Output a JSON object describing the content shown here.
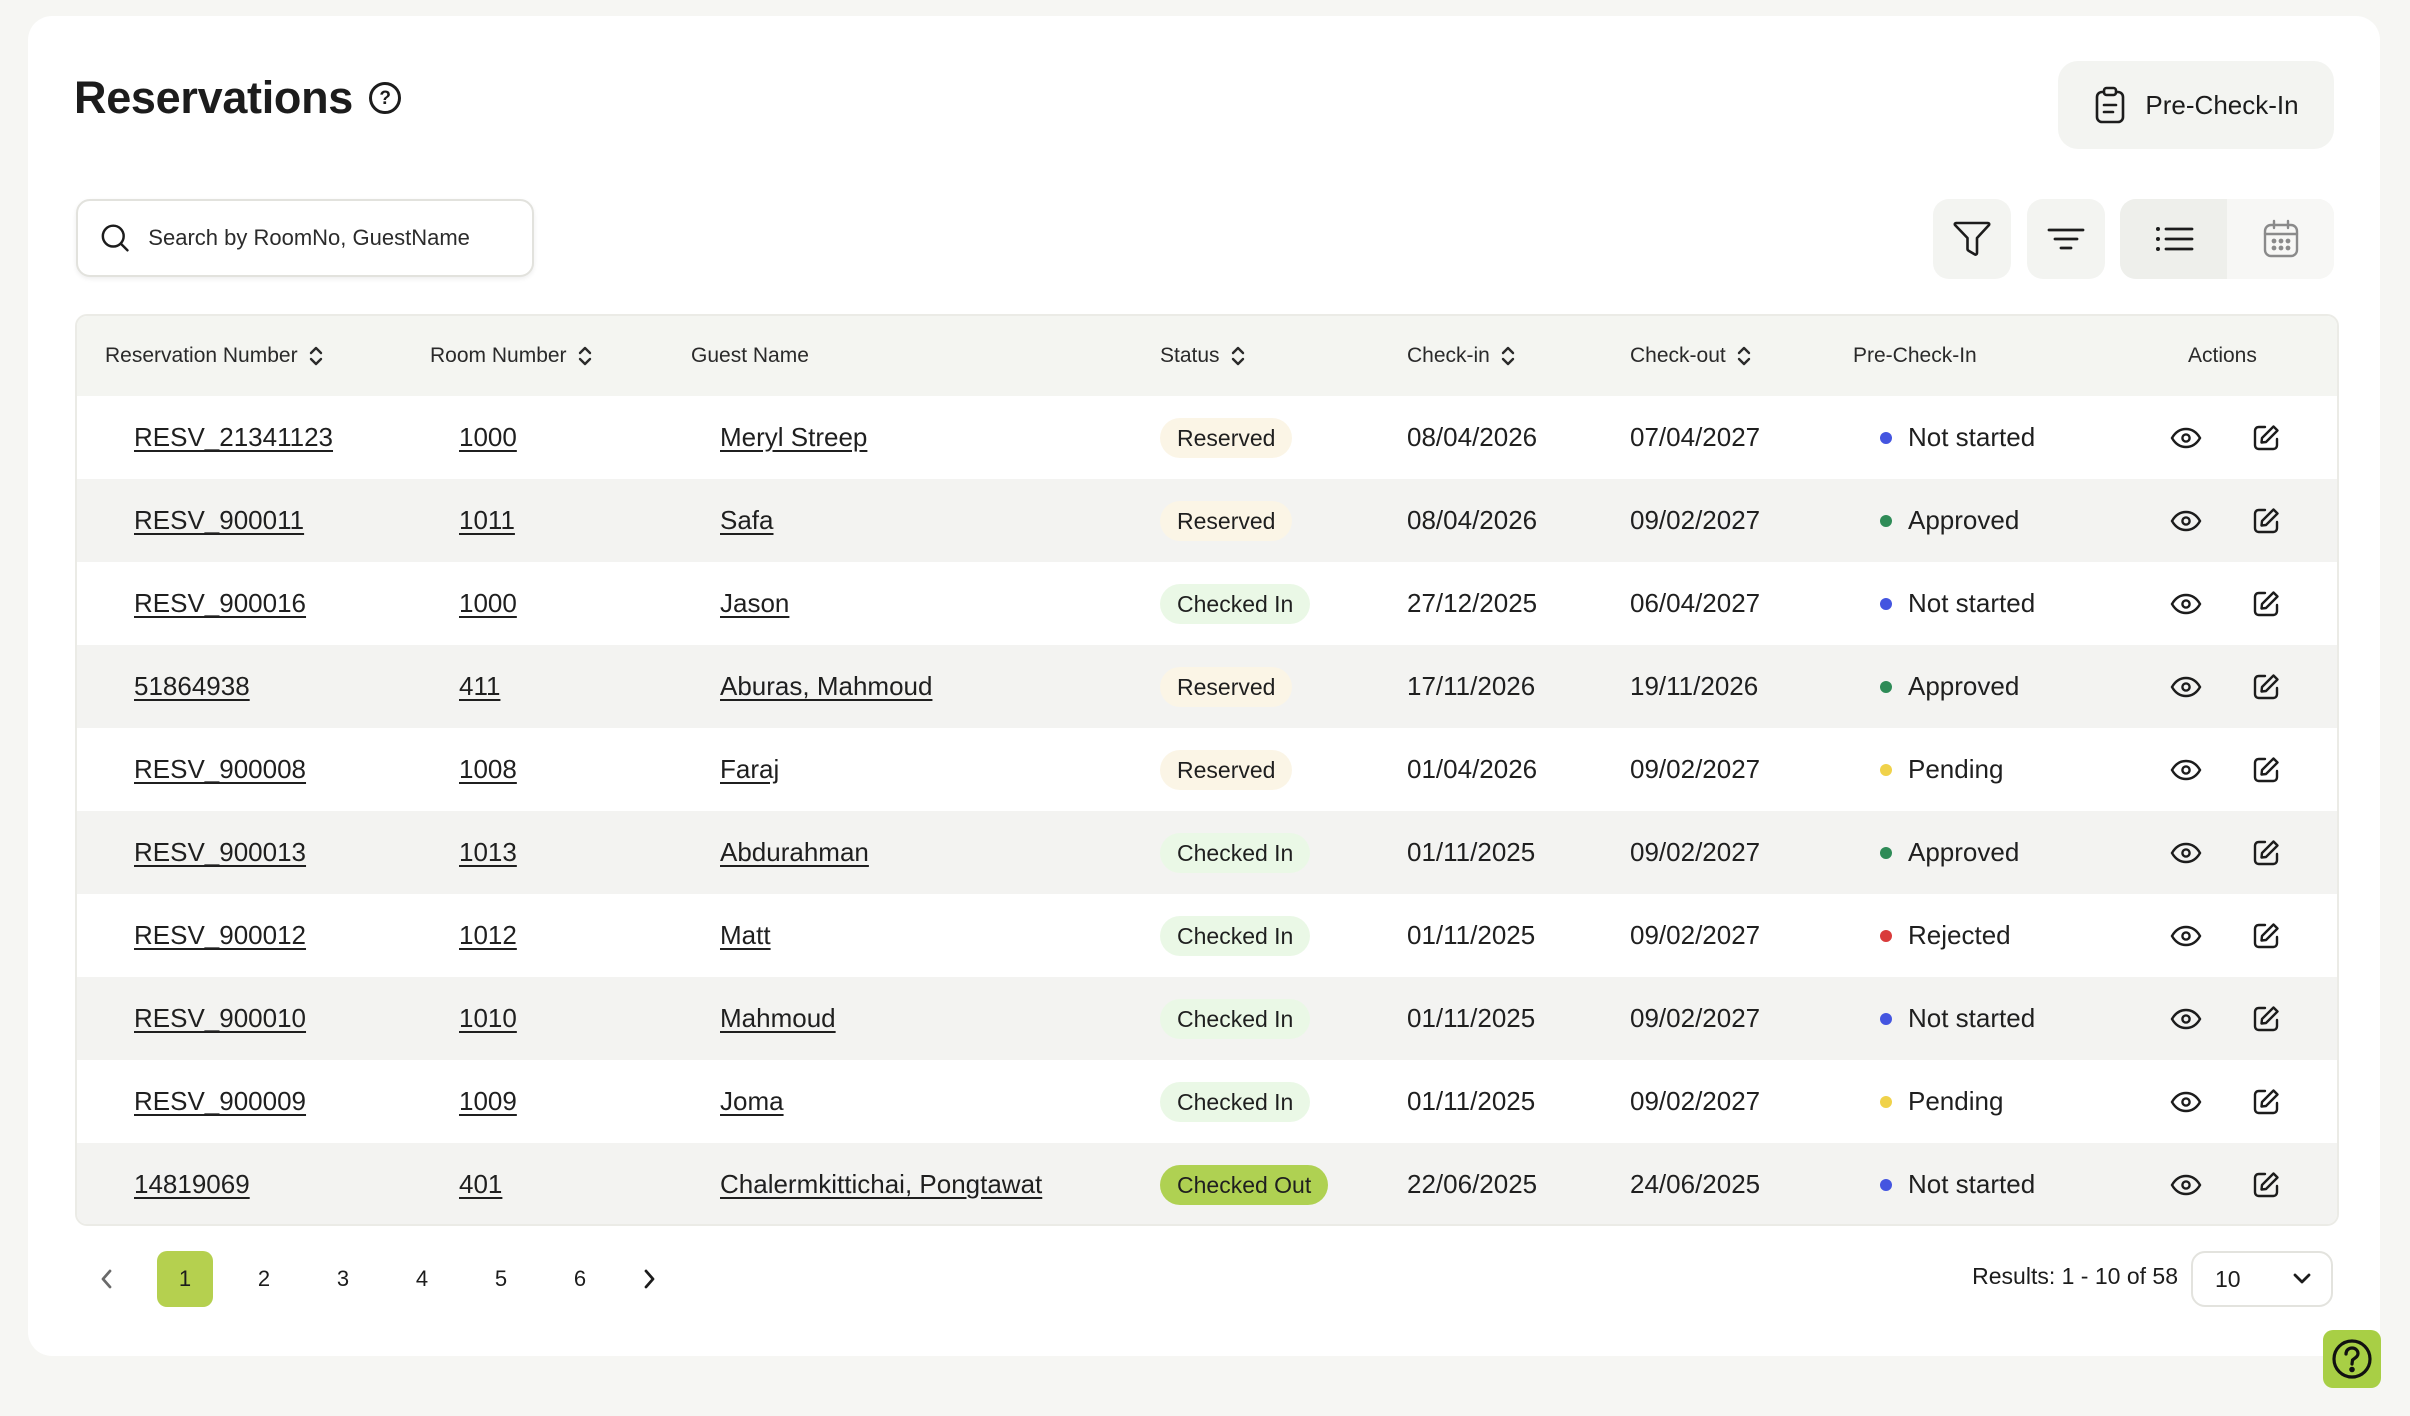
{
  "header": {
    "title": "Reservations",
    "help_glyph": "?",
    "precheck_button": "Pre-Check-In",
    "precheck_icon": "clipboard-icon"
  },
  "search": {
    "placeholder": "Search by RoomNo, GuestName",
    "value": ""
  },
  "toolbar": {
    "icons": [
      "funnel-filter-icon",
      "sort-lines-icon",
      "list-view-icon",
      "calendar-view-icon"
    ],
    "active_view": "list"
  },
  "table": {
    "columns": {
      "reservation_number": "Reservation Number",
      "room_number": "Room Number",
      "guest_name": "Guest Name",
      "status": "Status",
      "check_in": "Check-in",
      "check_out": "Check-out",
      "pre_check_in": "Pre-Check-In",
      "actions": "Actions"
    },
    "rows": [
      {
        "res": "RESV_21341123",
        "room": "1000",
        "guest": "Meryl Streep",
        "status": "Reserved",
        "status_kind": "reserved",
        "in": "08/04/2026",
        "out": "07/04/2027",
        "pre": "Not started",
        "pre_color": "#4455e0"
      },
      {
        "res": "RESV_900011",
        "room": "1011",
        "guest": "Safa",
        "status": "Reserved",
        "status_kind": "reserved",
        "in": "08/04/2026",
        "out": "09/02/2027",
        "pre": "Approved",
        "pre_color": "#2e8b57"
      },
      {
        "res": "RESV_900016",
        "room": "1000",
        "guest": "Jason",
        "status": "Checked In",
        "status_kind": "checkedin",
        "in": "27/12/2025",
        "out": "06/04/2027",
        "pre": "Not started",
        "pre_color": "#4455e0"
      },
      {
        "res": "51864938",
        "room": "411",
        "guest": "Aburas, Mahmoud",
        "status": "Reserved",
        "status_kind": "reserved",
        "in": "17/11/2026",
        "out": "19/11/2026",
        "pre": "Approved",
        "pre_color": "#2e8b57"
      },
      {
        "res": "RESV_900008",
        "room": "1008",
        "guest": "Faraj",
        "status": "Reserved",
        "status_kind": "reserved",
        "in": "01/04/2026",
        "out": "09/02/2027",
        "pre": "Pending",
        "pre_color": "#f0d24a"
      },
      {
        "res": "RESV_900013",
        "room": "1013",
        "guest": "Abdurahman",
        "status": "Checked In",
        "status_kind": "checkedin",
        "in": "01/11/2025",
        "out": "09/02/2027",
        "pre": "Approved",
        "pre_color": "#2e8b57"
      },
      {
        "res": "RESV_900012",
        "room": "1012",
        "guest": "Matt",
        "status": "Checked In",
        "status_kind": "checkedin",
        "in": "01/11/2025",
        "out": "09/02/2027",
        "pre": "Rejected",
        "pre_color": "#d93b3b"
      },
      {
        "res": "RESV_900010",
        "room": "1010",
        "guest": "Mahmoud",
        "status": "Checked In",
        "status_kind": "checkedin",
        "in": "01/11/2025",
        "out": "09/02/2027",
        "pre": "Not started",
        "pre_color": "#4455e0"
      },
      {
        "res": "RESV_900009",
        "room": "1009",
        "guest": "Joma",
        "status": "Checked In",
        "status_kind": "checkedin",
        "in": "01/11/2025",
        "out": "09/02/2027",
        "pre": "Pending",
        "pre_color": "#f0d24a"
      },
      {
        "res": "14819069",
        "room": "401",
        "guest": "Chalermkittichai, Pongtawat",
        "status": "Checked Out",
        "status_kind": "checkedout",
        "in": "22/06/2025",
        "out": "24/06/2025",
        "pre": "Not started",
        "pre_color": "#4455e0"
      }
    ]
  },
  "pagination": {
    "pages": [
      "1",
      "2",
      "3",
      "4",
      "5",
      "6"
    ],
    "current": "1",
    "results_text": "Results: 1 - 10 of 58",
    "per_page": "10"
  },
  "colors": {
    "accent": "#b5d04f",
    "reserved_bg": "#fbf5e6",
    "checked_in_bg": "#eaf8e6",
    "checked_out_bg": "#afd152"
  }
}
